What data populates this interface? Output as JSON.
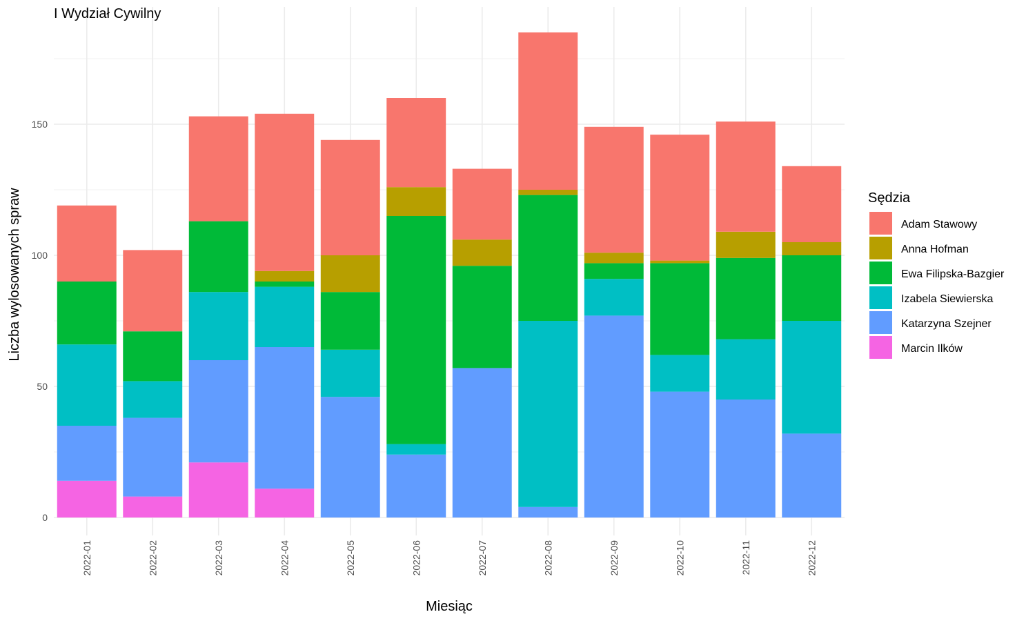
{
  "chart_data": {
    "type": "bar",
    "stacked": true,
    "title": "I Wydział Cywilny",
    "xlabel": "Miesiąc",
    "ylabel": "Liczba wylosowanych spraw",
    "ylim": [
      0,
      190
    ],
    "yticks": [
      0,
      50,
      100,
      150
    ],
    "grid": true,
    "legend_title": "Sędzia",
    "legend_position": "right",
    "categories": [
      "2022-01",
      "2022-02",
      "2022-03",
      "2022-04",
      "2022-05",
      "2022-06",
      "2022-07",
      "2022-08",
      "2022-09",
      "2022-10",
      "2022-11",
      "2022-12"
    ],
    "stack_order": [
      "Marcin Ilków",
      "Katarzyna Szejner",
      "Izabela Siewierska",
      "Ewa Filipska-Bazgier",
      "Anna Hofman",
      "Adam Stawowy"
    ],
    "series": [
      {
        "name": "Adam Stawowy",
        "color": "#F8766D",
        "values": [
          29,
          31,
          40,
          60,
          44,
          34,
          27,
          60,
          48,
          48,
          42,
          29
        ]
      },
      {
        "name": "Anna Hofman",
        "color": "#B79F00",
        "values": [
          0,
          0,
          0,
          4,
          14,
          11,
          10,
          2,
          4,
          1,
          10,
          5
        ]
      },
      {
        "name": "Ewa Filipska-Bazgier",
        "color": "#00BA38",
        "values": [
          24,
          19,
          27,
          2,
          22,
          87,
          39,
          48,
          6,
          35,
          31,
          25
        ]
      },
      {
        "name": "Izabela Siewierska",
        "color": "#00BFC4",
        "values": [
          31,
          14,
          26,
          23,
          18,
          4,
          0,
          71,
          14,
          14,
          23,
          43
        ]
      },
      {
        "name": "Katarzyna Szejner",
        "color": "#619CFF",
        "values": [
          21,
          30,
          39,
          54,
          46,
          24,
          57,
          4,
          77,
          48,
          45,
          32
        ]
      },
      {
        "name": "Marcin Ilków",
        "color": "#F564E3",
        "values": [
          14,
          8,
          21,
          11,
          0,
          0,
          0,
          0,
          0,
          0,
          0,
          0
        ]
      }
    ]
  }
}
